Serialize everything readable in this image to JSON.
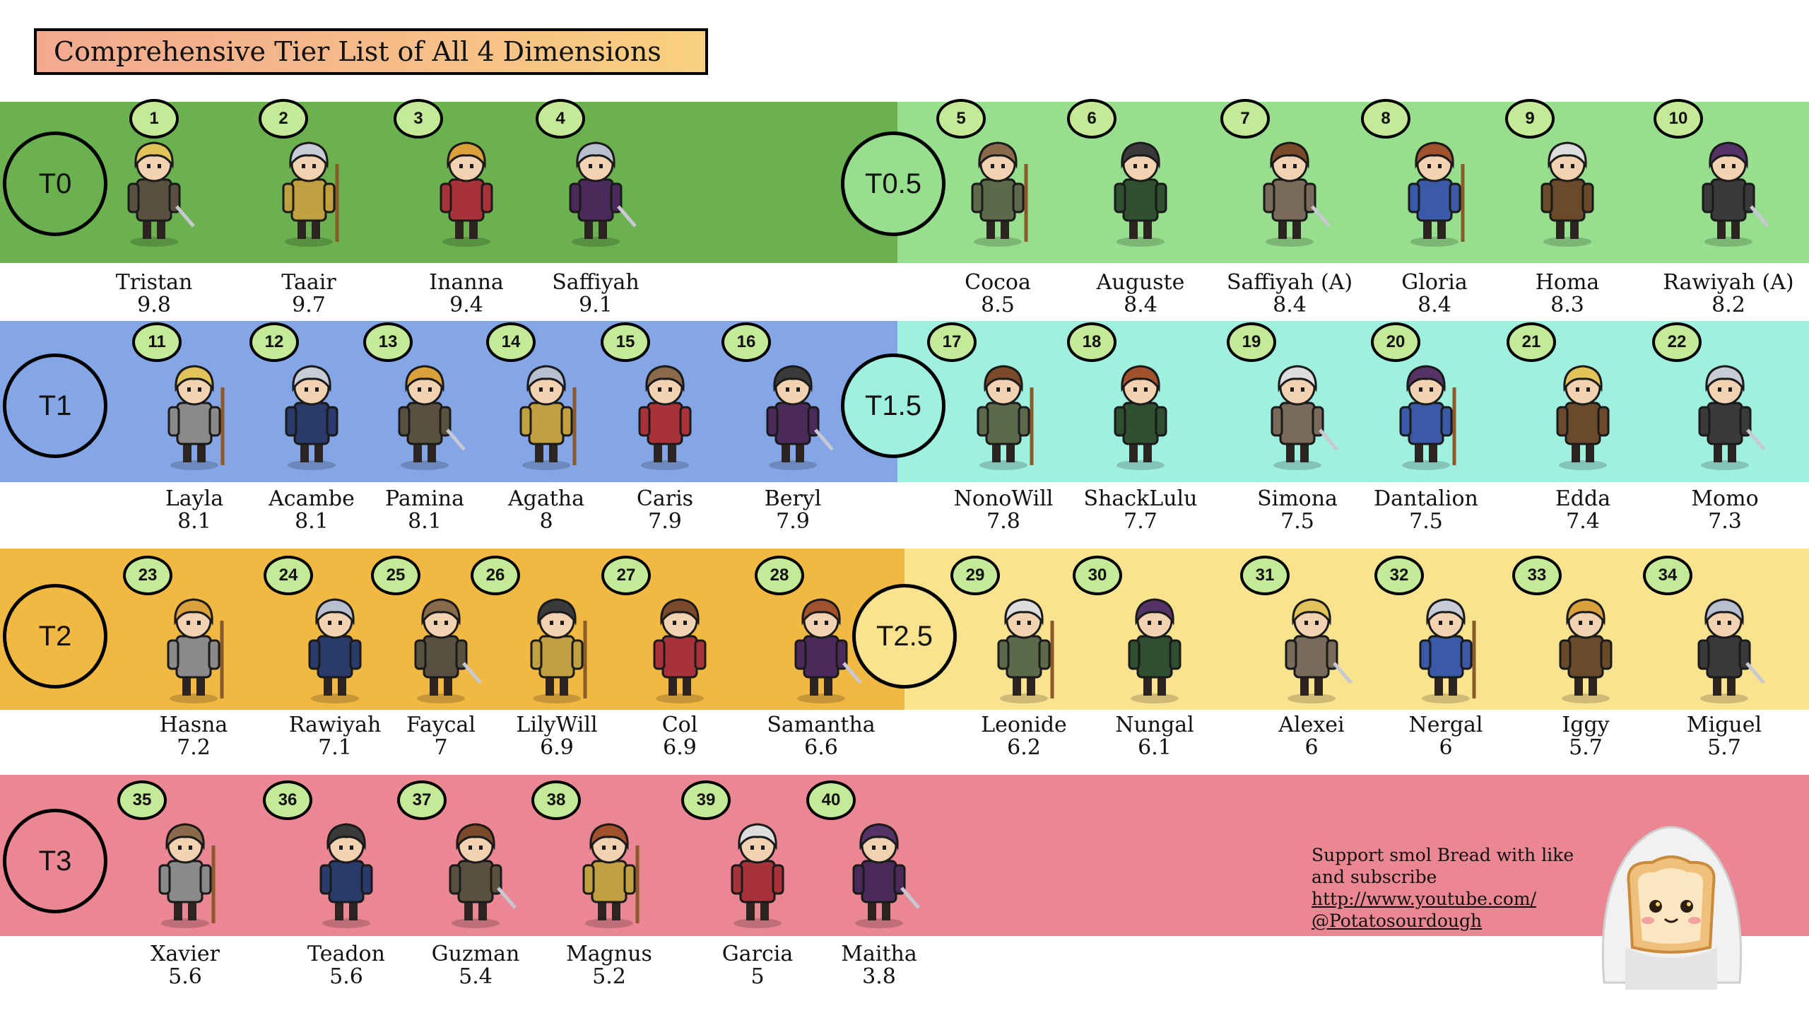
{
  "title": "Comprehensive Tier List of All 4 Dimensions",
  "colors": {
    "T0": "#6bb14f",
    "T0.5": "#97df8e",
    "T1": "#84a6e6",
    "T1.5": "#a0f0e0",
    "T2": "#f2b942",
    "T2.5": "#f9e38f",
    "T3": "#ea8792",
    "badge": "#c4ea98"
  },
  "tiers": [
    {
      "label": "T0",
      "color": "#6bb14f"
    },
    {
      "label": "T0.5",
      "color": "#97df8e"
    },
    {
      "label": "T1",
      "color": "#84a6e6"
    },
    {
      "label": "T1.5",
      "color": "#a0f0e0"
    },
    {
      "label": "T2",
      "color": "#f2b942"
    },
    {
      "label": "T2.5",
      "color": "#f9e38f"
    },
    {
      "label": "T3",
      "color": "#ea8792"
    }
  ],
  "characters": [
    {
      "rank": "1",
      "name": "Tristan",
      "score": "9.8"
    },
    {
      "rank": "2",
      "name": "Taair",
      "score": "9.7"
    },
    {
      "rank": "3",
      "name": "Inanna",
      "score": "9.4"
    },
    {
      "rank": "4",
      "name": "Saffiyah",
      "score": "9.1"
    },
    {
      "rank": "5",
      "name": "Cocoa",
      "score": "8.5"
    },
    {
      "rank": "6",
      "name": "Auguste",
      "score": "8.4"
    },
    {
      "rank": "7",
      "name": "Saffiyah (A)",
      "score": "8.4"
    },
    {
      "rank": "8",
      "name": "Gloria",
      "score": "8.4"
    },
    {
      "rank": "9",
      "name": "Homa",
      "score": "8.3"
    },
    {
      "rank": "10",
      "name": "Rawiyah (A)",
      "score": "8.2"
    },
    {
      "rank": "11",
      "name": "Layla",
      "score": "8.1"
    },
    {
      "rank": "12",
      "name": "Acambe",
      "score": "8.1"
    },
    {
      "rank": "13",
      "name": "Pamina",
      "score": "8.1"
    },
    {
      "rank": "14",
      "name": "Agatha",
      "score": "8"
    },
    {
      "rank": "15",
      "name": "Caris",
      "score": "7.9"
    },
    {
      "rank": "16",
      "name": "Beryl",
      "score": "7.9"
    },
    {
      "rank": "17",
      "name": "NonoWill",
      "score": "7.8"
    },
    {
      "rank": "18",
      "name": "ShackLulu",
      "score": "7.7"
    },
    {
      "rank": "19",
      "name": "Simona",
      "score": "7.5"
    },
    {
      "rank": "20",
      "name": "Dantalion",
      "score": "7.5"
    },
    {
      "rank": "21",
      "name": "Edda",
      "score": "7.4"
    },
    {
      "rank": "22",
      "name": "Momo",
      "score": "7.3"
    },
    {
      "rank": "23",
      "name": "Hasna",
      "score": "7.2"
    },
    {
      "rank": "24",
      "name": "Rawiyah",
      "score": "7.1"
    },
    {
      "rank": "25",
      "name": "Faycal",
      "score": "7"
    },
    {
      "rank": "26",
      "name": "LilyWill",
      "score": "6.9"
    },
    {
      "rank": "27",
      "name": "Col",
      "score": "6.9"
    },
    {
      "rank": "28",
      "name": "Samantha",
      "score": "6.6"
    },
    {
      "rank": "29",
      "name": "Leonide",
      "score": "6.2"
    },
    {
      "rank": "30",
      "name": "Nungal",
      "score": "6.1"
    },
    {
      "rank": "31",
      "name": "Alexei",
      "score": "6"
    },
    {
      "rank": "32",
      "name": "Nergal",
      "score": "6"
    },
    {
      "rank": "33",
      "name": "Iggy",
      "score": "5.7"
    },
    {
      "rank": "34",
      "name": "Miguel",
      "score": "5.7"
    },
    {
      "rank": "35",
      "name": "Xavier",
      "score": "5.6"
    },
    {
      "rank": "36",
      "name": "Teadon",
      "score": "5.6"
    },
    {
      "rank": "37",
      "name": "Guzman",
      "score": "5.4"
    },
    {
      "rank": "38",
      "name": "Magnus",
      "score": "5.2"
    },
    {
      "rank": "39",
      "name": "Garcia",
      "score": "5"
    },
    {
      "rank": "40",
      "name": "Maitha",
      "score": "3.8"
    }
  ],
  "support": {
    "line1": "Support smol Bread with like",
    "line2": "and subscribe",
    "link1": "http://www.youtube.com/",
    "link2": "@Potatosourdough"
  }
}
